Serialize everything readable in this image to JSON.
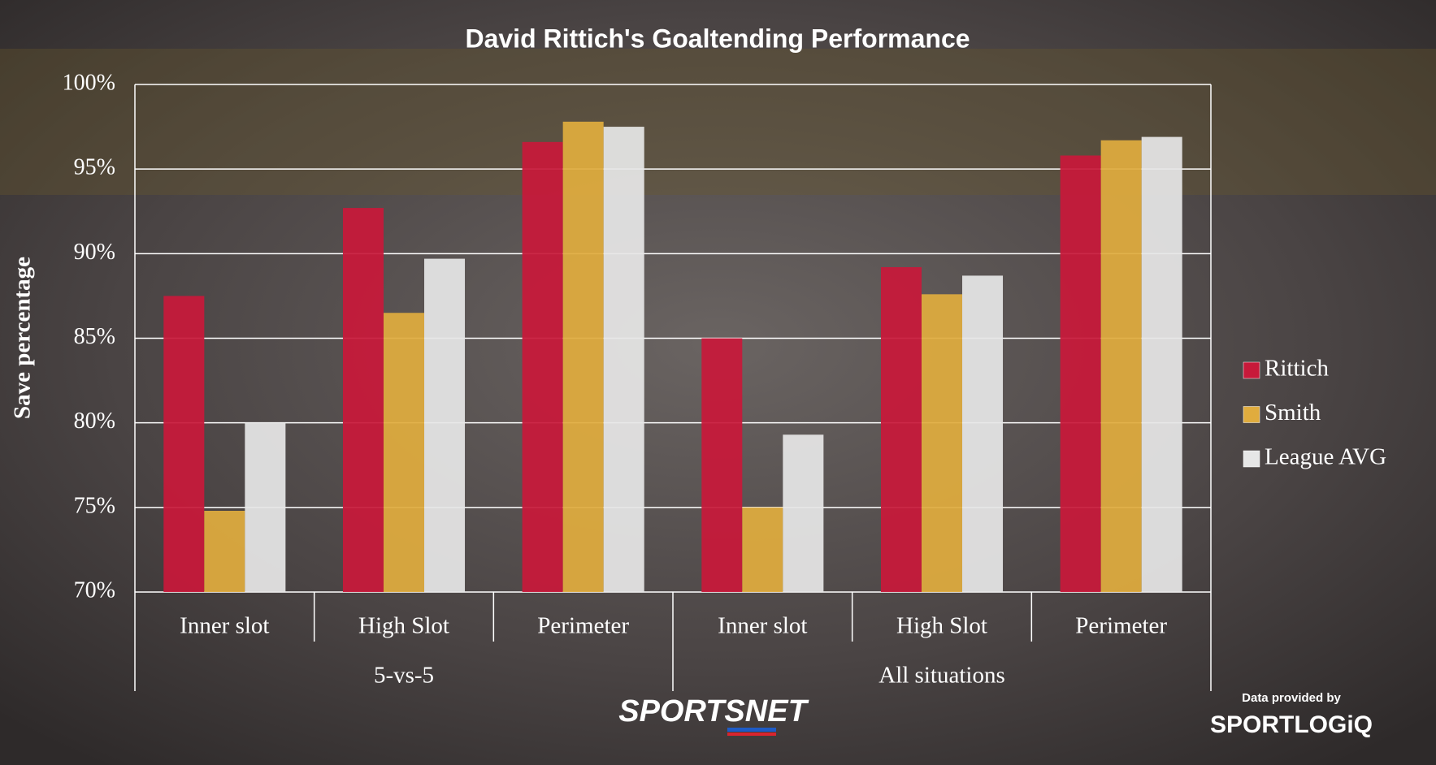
{
  "chart_data": {
    "type": "bar",
    "title": "David Rittich's Goaltending Performance",
    "y_label": "Save percentage",
    "categories": [
      "Inner slot",
      "High Slot",
      "Perimeter",
      "Inner slot",
      "High Slot",
      "Perimeter"
    ],
    "groups": [
      "5-vs-5",
      "All situations"
    ],
    "series": [
      {
        "name": "Rittich",
        "color": "#c8193a",
        "values": [
          87.5,
          92.7,
          96.6,
          85.0,
          89.2,
          95.8
        ]
      },
      {
        "name": "Smith",
        "color": "#e0ac3e",
        "values": [
          74.8,
          86.5,
          97.8,
          75.0,
          87.6,
          96.7
        ]
      },
      {
        "name": "League AVG",
        "color": "#e6e6e6",
        "values": [
          80.0,
          89.7,
          97.5,
          79.3,
          88.7,
          96.9
        ]
      }
    ],
    "ylim": [
      70,
      100
    ],
    "yticks": [
      {
        "value": 70,
        "label": "70%"
      },
      {
        "value": 75,
        "label": "75%"
      },
      {
        "value": 80,
        "label": "80%"
      },
      {
        "value": 85,
        "label": "85%"
      },
      {
        "value": 90,
        "label": "90%"
      },
      {
        "value": 95,
        "label": "95%"
      },
      {
        "value": 100,
        "label": "100%"
      }
    ],
    "grid": true,
    "legend": "right"
  },
  "footer": {
    "brand": "SPORTSNET",
    "credit": "Data provided by",
    "source": "SPORTLOGiQ"
  }
}
